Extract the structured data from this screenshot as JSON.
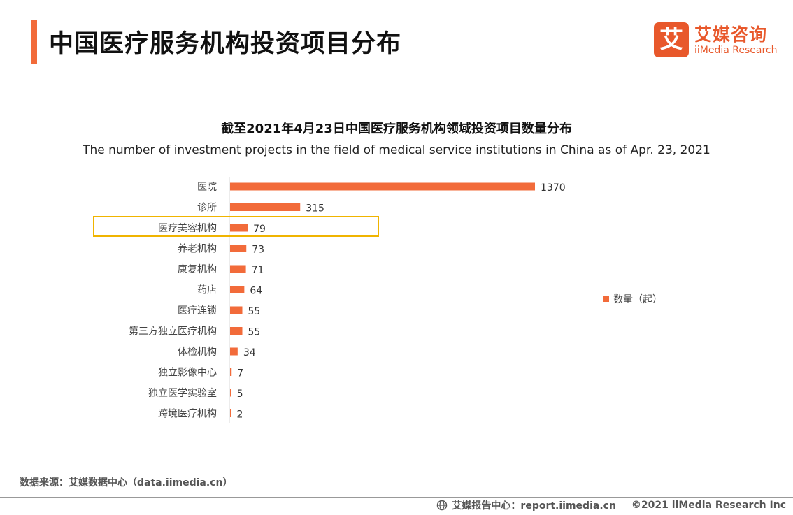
{
  "header": {
    "title": "中国医疗服务机构投资项目分布",
    "logo_mark": "艾",
    "logo_cn": "艾媒咨询",
    "logo_en": "iiMedia Research"
  },
  "colors": {
    "accent": "#f26b3a",
    "bar": "#f26b3a",
    "highlight": "#f0b400"
  },
  "chart_data": {
    "type": "bar",
    "orientation": "horizontal",
    "title": "截至2021年4月23日中国医疗服务机构领域投资项目数量分布",
    "subtitle": "The number of investment projects in the field of medical service institutions in China as of Apr. 23, 2021",
    "categories": [
      "医院",
      "诊所",
      "医疗美容机构",
      "养老机构",
      "康复机构",
      "药店",
      "医疗连锁",
      "第三方独立医疗机构",
      "体检机构",
      "独立影像中心",
      "独立医学实验室",
      "跨境医疗机构"
    ],
    "series": [
      {
        "name": "数量（起）",
        "values": [
          1370,
          315,
          79,
          73,
          71,
          64,
          55,
          55,
          34,
          7,
          5,
          2
        ]
      }
    ],
    "highlighted_category": "医疗美容机构",
    "xlim": [
      0,
      1370
    ],
    "legend": "right",
    "grid": false
  },
  "footer": {
    "source": "数据来源：艾媒数据中心（data.iimedia.cn）",
    "report_center": "艾媒报告中心：report.iimedia.cn",
    "copyright": "©2021  iiMedia Research  Inc"
  }
}
